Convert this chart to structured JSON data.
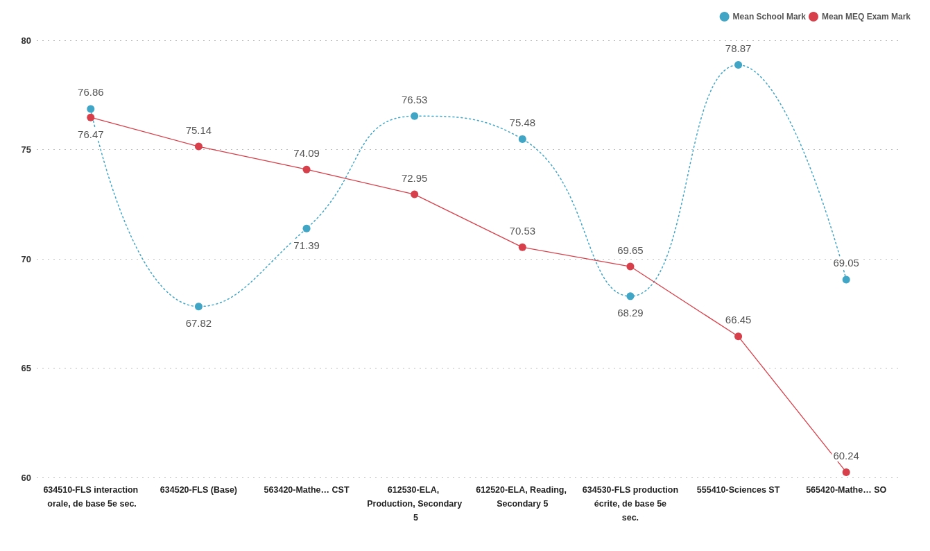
{
  "chart_data": {
    "type": "line",
    "categories": [
      "634510-FLS interaction orale, de base 5e sec.",
      "634520-FLS (Base)",
      "563420-Mathe… CST",
      "612530-ELA, Production, Secondary 5",
      "612520-ELA, Reading, Secondary 5",
      "634530-FLS production écrite, de base 5e sec.",
      "555410-Sciences ST",
      "565420-Mathe… SO"
    ],
    "series": [
      {
        "name": "Mean School Mark",
        "color": "#41a5c6",
        "line_style": "dotted",
        "values": [
          76.86,
          67.82,
          71.39,
          76.53,
          75.48,
          68.29,
          78.87,
          69.05
        ]
      },
      {
        "name": "Mean MEQ Exam Mark",
        "color": "#d7404a",
        "line_style": "solid",
        "values": [
          76.47,
          75.14,
          74.09,
          72.95,
          70.53,
          69.65,
          66.45,
          60.24
        ]
      }
    ],
    "ylim": [
      60,
      80
    ],
    "yticks": [
      60,
      65,
      70,
      75,
      80
    ],
    "grid": "y",
    "legend": "top right",
    "marker": "circle",
    "data_labels": true
  }
}
